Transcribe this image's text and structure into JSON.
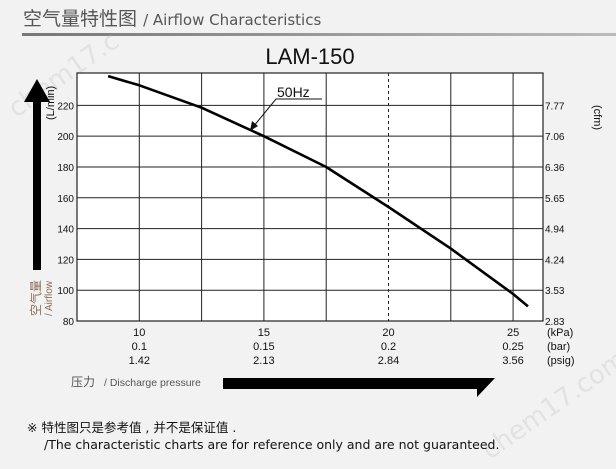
{
  "header": {
    "title_cn": "空气量特性图",
    "title_en": "/ Airflow Characteristics"
  },
  "watermark": "chem17.com",
  "chart_data": {
    "type": "line",
    "title": "LAM-150",
    "series": [
      {
        "name": "50Hz",
        "x": [
          8.75,
          10,
          12.5,
          15,
          17.5,
          20,
          22.5,
          25,
          25.6
        ],
        "y": [
          239,
          233,
          218.5,
          200,
          180,
          154,
          127,
          97.5,
          89.5
        ]
      }
    ],
    "xlim": [
      7.5,
      26.2
    ],
    "ylim": [
      80,
      241
    ],
    "grid": true,
    "x_grid": [
      10,
      12.5,
      15,
      17.5,
      20,
      22.5,
      25
    ],
    "x_dashed_grid": [
      20
    ],
    "y_ticks": [
      80,
      100,
      120,
      140,
      160,
      180,
      200,
      220
    ],
    "y_unit": "(L/min)",
    "y2_ticks": [
      "2.83",
      "3.53",
      "4.24",
      "4.94",
      "5.65",
      "6.36",
      "7.06",
      "7.77"
    ],
    "y2_unit": "(cfm)",
    "x_ticks": [
      {
        "kpa": "10",
        "bar": "0.1",
        "psig": "1.42",
        "value": 10
      },
      {
        "kpa": "15",
        "bar": "0.15",
        "psig": "2.13",
        "value": 15
      },
      {
        "kpa": "20",
        "bar": "0.2",
        "psig": "2.84",
        "value": 20
      },
      {
        "kpa": "25",
        "bar": "0.25",
        "psig": "3.56",
        "value": 25
      }
    ],
    "x_units": [
      "(kPa)",
      "(bar)",
      "(psig)"
    ],
    "ylabel_cn": "空气量",
    "ylabel_en": "/ Airflow",
    "xlabel_cn": "压力",
    "xlabel_en": "/ Discharge pressure",
    "curve_label": "50Hz",
    "colors": {
      "line": "#000000",
      "grid": "#222222",
      "axis_label": "#8a6d5a"
    }
  },
  "notes": {
    "cn": "※ 特性图只是参考值 , 并不是保证值 .",
    "en": "/The characteristic charts are for reference only and are not guaranteed."
  }
}
